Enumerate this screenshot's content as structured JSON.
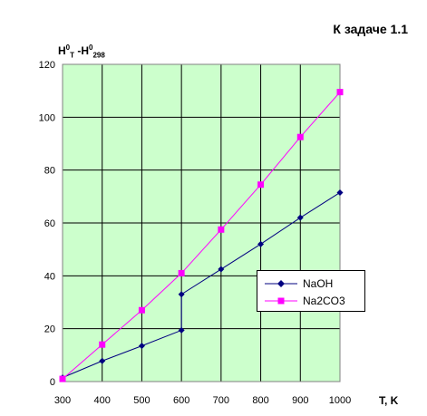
{
  "chart_data": {
    "type": "line",
    "title": "К задаче 1.1",
    "ylabel": {
      "base": "H",
      "sup1": "0",
      "sub1": "T",
      "sep": " -H",
      "sup2": "0",
      "sub2": "298"
    },
    "xlabel": "T, K",
    "xlim": [
      300,
      1000
    ],
    "ylim": [
      0,
      120
    ],
    "xticks": [
      300,
      400,
      500,
      600,
      700,
      800,
      900,
      1000
    ],
    "yticks": [
      0,
      20,
      40,
      60,
      80,
      100,
      120
    ],
    "grid": true,
    "legend_position": "inside-right",
    "plot_background": "#ccffcc",
    "series": [
      {
        "name": "NaOH",
        "color": "#000080",
        "marker": "diamond",
        "points": [
          [
            300,
            1.5
          ],
          [
            400,
            7.8
          ],
          [
            500,
            13.5
          ],
          [
            600,
            19.4
          ],
          [
            600,
            33.0
          ],
          [
            700,
            42.5
          ],
          [
            800,
            52.0
          ],
          [
            900,
            62.0
          ],
          [
            1000,
            71.5
          ]
        ]
      },
      {
        "name": "Na2CO3",
        "color": "#ff00ff",
        "marker": "square",
        "points": [
          [
            300,
            1.0
          ],
          [
            400,
            14.0
          ],
          [
            500,
            27.0
          ],
          [
            600,
            41.0
          ],
          [
            700,
            57.5
          ],
          [
            800,
            74.5
          ],
          [
            900,
            92.5
          ],
          [
            1000,
            109.5
          ]
        ]
      }
    ]
  }
}
